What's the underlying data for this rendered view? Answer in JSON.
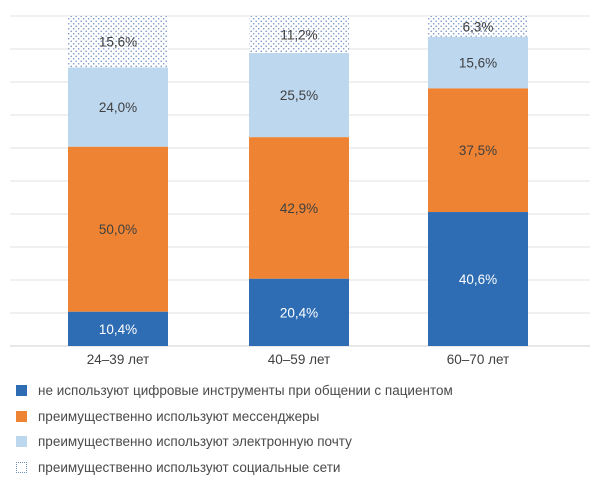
{
  "chart_data": {
    "type": "bar",
    "stacked": true,
    "categories": [
      "24–39 лет",
      "40–59 лет",
      "60–70 лет"
    ],
    "series": [
      {
        "name": "не используют цифровые инструменты при общении с пациентом",
        "values": [
          10.4,
          20.4,
          40.6
        ],
        "labels": [
          "10,4%",
          "20,4%",
          "40,6%"
        ],
        "color": "#2e6db4",
        "label_color": "#ffffff"
      },
      {
        "name": "преимущественно используют мессенджеры",
        "values": [
          50.0,
          42.9,
          37.5
        ],
        "labels": [
          "50,0%",
          "42,9%",
          "37,5%"
        ],
        "color": "#ee8433",
        "label_color": "#404040"
      },
      {
        "name": "преимущественно используют электронную почту",
        "values": [
          24.0,
          25.5,
          15.6
        ],
        "labels": [
          "24,0%",
          "25,5%",
          "15,6%"
        ],
        "color": "#bdd7ee",
        "label_color": "#404040"
      },
      {
        "name": "преимущественно используют социальные сети",
        "values": [
          15.6,
          11.2,
          6.3
        ],
        "labels": [
          "15,6%",
          "11,2%",
          "6,3%"
        ],
        "color": "dotted",
        "label_color": "#404040"
      }
    ],
    "ylim": [
      0,
      100
    ],
    "grid": true,
    "legend_position": "bottom"
  }
}
